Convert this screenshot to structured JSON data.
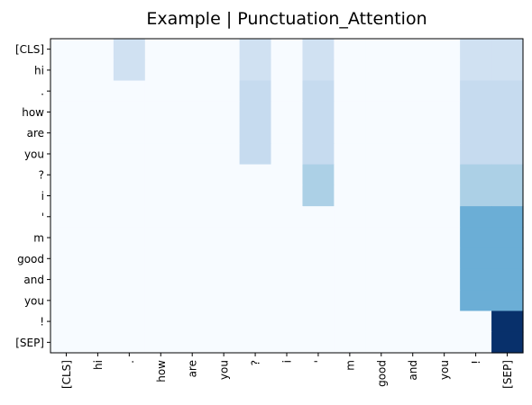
{
  "chart_data": {
    "type": "heatmap",
    "title": "Example | Punctuation_Attention",
    "colormap": "Blues",
    "value_range": [
      0,
      1
    ],
    "x_labels": [
      "[CLS]",
      "hi",
      ".",
      "how",
      "are",
      "you",
      "?",
      "i",
      "'",
      "m",
      "good",
      "and",
      "you",
      "!",
      "[SEP]"
    ],
    "y_labels": [
      "[CLS]",
      "hi",
      ".",
      "how",
      "are",
      "you",
      "?",
      "i",
      "'",
      "m",
      "good",
      "and",
      "you",
      "!",
      "[SEP]"
    ],
    "values": [
      [
        0,
        0,
        0.2,
        0,
        0,
        0,
        0.2,
        0,
        0.2,
        0,
        0,
        0,
        0,
        0.2,
        0.2
      ],
      [
        0,
        0,
        0.2,
        0,
        0,
        0,
        0.2,
        0,
        0.2,
        0,
        0,
        0,
        0,
        0.2,
        0.2
      ],
      [
        0,
        0,
        0,
        0,
        0,
        0,
        0.25,
        0,
        0.25,
        0,
        0,
        0,
        0,
        0.25,
        0.25
      ],
      [
        0,
        0,
        0,
        0,
        0,
        0,
        0.25,
        0,
        0.25,
        0,
        0,
        0,
        0,
        0.25,
        0.25
      ],
      [
        0,
        0,
        0,
        0,
        0,
        0,
        0.25,
        0,
        0.25,
        0,
        0,
        0,
        0,
        0.25,
        0.25
      ],
      [
        0,
        0,
        0,
        0,
        0,
        0,
        0.25,
        0,
        0.25,
        0,
        0,
        0,
        0,
        0.25,
        0.25
      ],
      [
        0,
        0,
        0,
        0,
        0,
        0,
        0,
        0,
        0.33,
        0,
        0,
        0,
        0,
        0.33,
        0.33
      ],
      [
        0,
        0,
        0,
        0,
        0,
        0,
        0,
        0,
        0.33,
        0,
        0,
        0,
        0,
        0.33,
        0.33
      ],
      [
        0,
        0,
        0,
        0,
        0,
        0,
        0,
        0,
        0,
        0,
        0,
        0,
        0,
        0.5,
        0.5
      ],
      [
        0,
        0,
        0,
        0,
        0,
        0,
        0,
        0,
        0,
        0,
        0,
        0,
        0,
        0.5,
        0.5
      ],
      [
        0,
        0,
        0,
        0,
        0,
        0,
        0,
        0,
        0,
        0,
        0,
        0,
        0,
        0.5,
        0.5
      ],
      [
        0,
        0,
        0,
        0,
        0,
        0,
        0,
        0,
        0,
        0,
        0,
        0,
        0,
        0.5,
        0.5
      ],
      [
        0,
        0,
        0,
        0,
        0,
        0,
        0,
        0,
        0,
        0,
        0,
        0,
        0,
        0.5,
        0.5
      ],
      [
        0,
        0,
        0,
        0,
        0,
        0,
        0,
        0,
        0,
        0,
        0,
        0,
        0,
        0,
        1
      ],
      [
        0,
        0,
        0,
        0,
        0,
        0,
        0,
        0,
        0,
        0,
        0,
        0,
        0,
        0,
        1
      ]
    ]
  }
}
